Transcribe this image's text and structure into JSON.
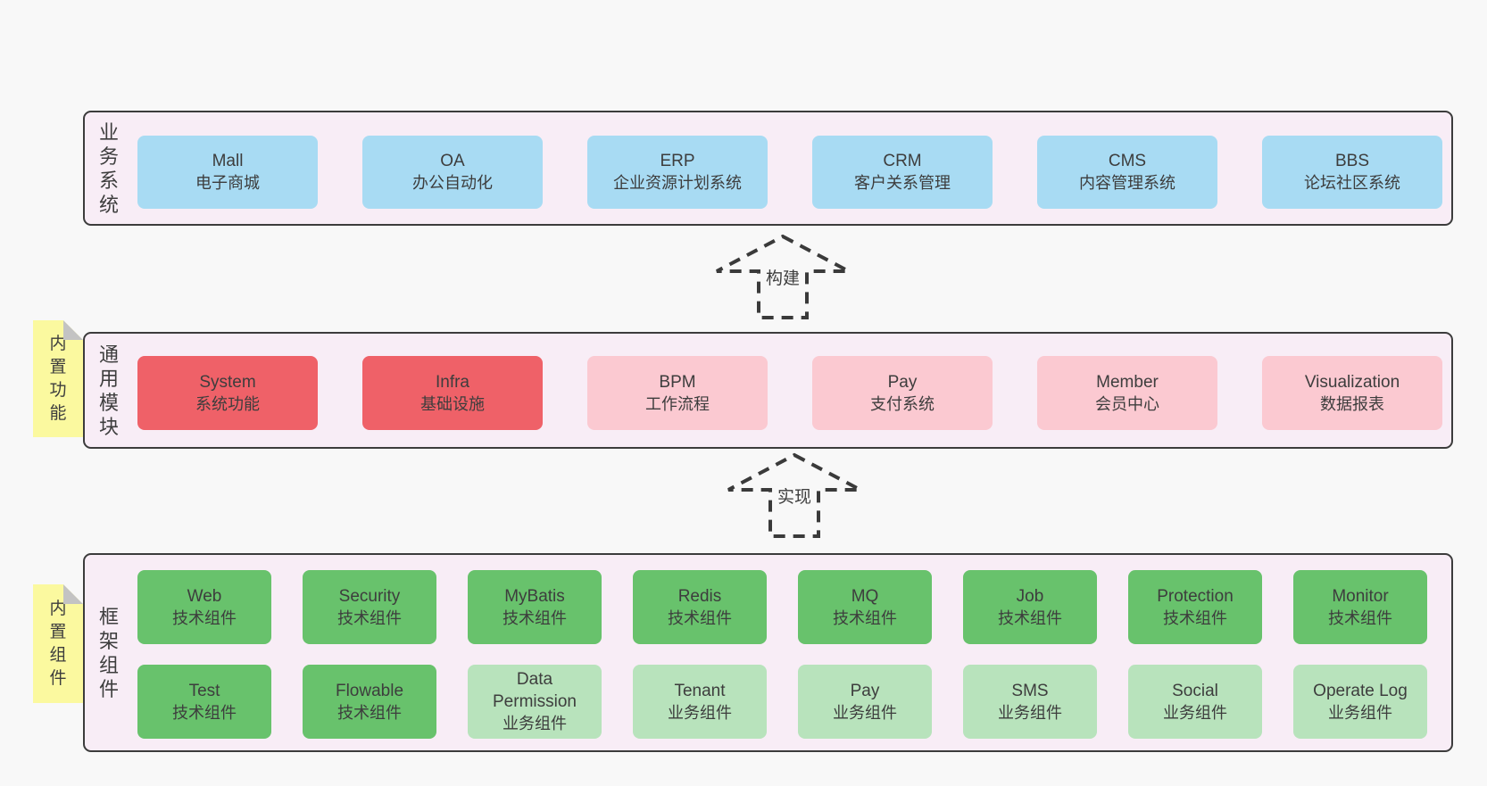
{
  "colors": {
    "page_bg": "#f8f8f8",
    "layer_bg": "#f8edf6",
    "layer_border": "#3c3c3c",
    "box_blue": "#a8dbf3",
    "box_red": "#ef6168",
    "box_pink": "#fbc9d1",
    "box_green": "#68c26c",
    "box_light_green": "#b8e3bc",
    "note_yellow": "#fbf99f",
    "note_fold_gray": "#c3c3c3",
    "text": "#3d3d3d"
  },
  "layer1": {
    "side_label": "业务系统",
    "boxes": [
      {
        "title": "Mall",
        "subtitle": "电子商城",
        "variant": "blue"
      },
      {
        "title": "OA",
        "subtitle": "办公自动化",
        "variant": "blue"
      },
      {
        "title": "ERP",
        "subtitle": "企业资源计划系统",
        "variant": "blue"
      },
      {
        "title": "CRM",
        "subtitle": "客户关系管理",
        "variant": "blue"
      },
      {
        "title": "CMS",
        "subtitle": "内容管理系统",
        "variant": "blue"
      },
      {
        "title": "BBS",
        "subtitle": "论坛社区系统",
        "variant": "blue"
      }
    ]
  },
  "arrow1": {
    "label": "构建"
  },
  "layer2": {
    "side_label": "通用模块",
    "note": "内置功能",
    "boxes": [
      {
        "title": "System",
        "subtitle": "系统功能",
        "variant": "red"
      },
      {
        "title": "Infra",
        "subtitle": "基础设施",
        "variant": "red"
      },
      {
        "title": "BPM",
        "subtitle": "工作流程",
        "variant": "pink"
      },
      {
        "title": "Pay",
        "subtitle": "支付系统",
        "variant": "pink"
      },
      {
        "title": "Member",
        "subtitle": "会员中心",
        "variant": "pink"
      },
      {
        "title": "Visualization",
        "subtitle": "数据报表",
        "variant": "pink"
      }
    ]
  },
  "arrow2": {
    "label": "实现"
  },
  "layer3": {
    "side_label": "框架组件",
    "note": "内置组件",
    "row1": [
      {
        "title": "Web",
        "subtitle": "技术组件",
        "variant": "green"
      },
      {
        "title": "Security",
        "subtitle": "技术组件",
        "variant": "green"
      },
      {
        "title": "MyBatis",
        "subtitle": "技术组件",
        "variant": "green"
      },
      {
        "title": "Redis",
        "subtitle": "技术组件",
        "variant": "green"
      },
      {
        "title": "MQ",
        "subtitle": "技术组件",
        "variant": "green"
      },
      {
        "title": "Job",
        "subtitle": "技术组件",
        "variant": "green"
      },
      {
        "title": "Protection",
        "subtitle": "技术组件",
        "variant": "green"
      },
      {
        "title": "Monitor",
        "subtitle": "技术组件",
        "variant": "green"
      }
    ],
    "row2": [
      {
        "title": "Test",
        "subtitle": "技术组件",
        "variant": "green"
      },
      {
        "title": "Flowable",
        "subtitle": "技术组件",
        "variant": "green"
      },
      {
        "title": "Data Permission",
        "subtitle": "业务组件",
        "variant": "lightgreen"
      },
      {
        "title": "Tenant",
        "subtitle": "业务组件",
        "variant": "lightgreen"
      },
      {
        "title": "Pay",
        "subtitle": "业务组件",
        "variant": "lightgreen"
      },
      {
        "title": "SMS",
        "subtitle": "业务组件",
        "variant": "lightgreen"
      },
      {
        "title": "Social",
        "subtitle": "业务组件",
        "variant": "lightgreen"
      },
      {
        "title": "Operate Log",
        "subtitle": "业务组件",
        "variant": "lightgreen"
      }
    ]
  }
}
